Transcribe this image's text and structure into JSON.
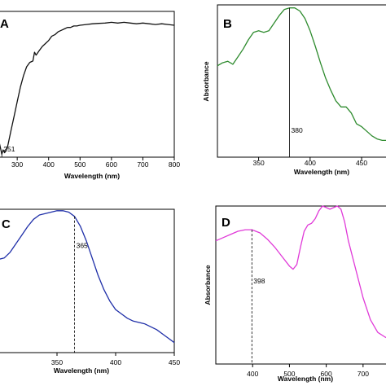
{
  "chart_data": [
    {
      "type": "line",
      "panel_label": "A",
      "xlabel": "Wavelength (nm)",
      "ylabel": "",
      "xlim": [
        240,
        800
      ],
      "ylim": [
        0,
        1
      ],
      "xticks": [
        "300",
        "400",
        "500",
        "600",
        "700",
        "800"
      ],
      "color": "#111111",
      "annotations": [
        {
          "text": "251",
          "x": 251
        }
      ],
      "series": [
        {
          "x": [
            240,
            244,
            248,
            251,
            255,
            260,
            265,
            270,
            275,
            280,
            290,
            300,
            310,
            320,
            330,
            340,
            350,
            355,
            360,
            370,
            380,
            390,
            400,
            410,
            420,
            430,
            440,
            450,
            460,
            470,
            480,
            490,
            500,
            520,
            540,
            560,
            580,
            600,
            620,
            640,
            660,
            680,
            700,
            720,
            740,
            760,
            780,
            800
          ],
          "values": [
            0.12,
            0.09,
            0.05,
            0.02,
            0.05,
            0.03,
            0.05,
            0.08,
            0.13,
            0.18,
            0.28,
            0.38,
            0.48,
            0.56,
            0.62,
            0.65,
            0.66,
            0.72,
            0.7,
            0.73,
            0.76,
            0.78,
            0.8,
            0.83,
            0.84,
            0.86,
            0.87,
            0.88,
            0.89,
            0.89,
            0.9,
            0.9,
            0.905,
            0.91,
            0.915,
            0.918,
            0.92,
            0.925,
            0.92,
            0.925,
            0.92,
            0.915,
            0.92,
            0.915,
            0.91,
            0.915,
            0.91,
            0.905
          ]
        }
      ]
    },
    {
      "type": "line",
      "panel_label": "B",
      "xlabel": "Wavelength (nm)",
      "ylabel": "Absorbance",
      "xlim": [
        310,
        480
      ],
      "ylim": [
        0,
        1
      ],
      "xticks": [
        "350",
        "400",
        "450"
      ],
      "color": "#2e8b2e",
      "annotations": [
        {
          "text": "380",
          "x": 380
        }
      ],
      "series": [
        {
          "x": [
            310,
            315,
            320,
            325,
            330,
            335,
            340,
            345,
            350,
            355,
            360,
            365,
            370,
            375,
            380,
            385,
            390,
            395,
            400,
            405,
            410,
            415,
            420,
            425,
            430,
            435,
            440,
            445,
            450,
            455,
            460,
            465,
            470,
            475,
            480
          ],
          "values": [
            0.6,
            0.62,
            0.63,
            0.61,
            0.66,
            0.71,
            0.77,
            0.82,
            0.83,
            0.82,
            0.83,
            0.88,
            0.93,
            0.97,
            0.98,
            0.98,
            0.96,
            0.91,
            0.83,
            0.73,
            0.62,
            0.52,
            0.44,
            0.37,
            0.33,
            0.33,
            0.29,
            0.22,
            0.2,
            0.17,
            0.14,
            0.12,
            0.11,
            0.11,
            0.1
          ]
        }
      ]
    },
    {
      "type": "line",
      "panel_label": "C",
      "xlabel": "Wavelength (nm)",
      "ylabel": "",
      "xlim": [
        300,
        450
      ],
      "ylim": [
        0,
        1
      ],
      "xticks": [
        "350",
        "400",
        "450"
      ],
      "color": "#1f2fa8",
      "annotations": [
        {
          "text": "365",
          "x": 365
        }
      ],
      "series": [
        {
          "x": [
            300,
            305,
            310,
            315,
            320,
            325,
            330,
            335,
            340,
            345,
            350,
            355,
            360,
            365,
            370,
            375,
            380,
            385,
            390,
            395,
            400,
            405,
            410,
            415,
            420,
            425,
            430,
            435,
            440,
            445,
            450
          ],
          "values": [
            0.65,
            0.66,
            0.7,
            0.76,
            0.82,
            0.88,
            0.93,
            0.96,
            0.97,
            0.98,
            0.99,
            0.99,
            0.98,
            0.95,
            0.88,
            0.78,
            0.66,
            0.54,
            0.44,
            0.36,
            0.3,
            0.27,
            0.24,
            0.22,
            0.21,
            0.2,
            0.18,
            0.16,
            0.13,
            0.1,
            0.07
          ]
        }
      ]
    },
    {
      "type": "line",
      "panel_label": "D",
      "xlabel": "Wavelength (nm)",
      "ylabel": "Absorbance",
      "xlim": [
        300,
        780
      ],
      "ylim": [
        0,
        1
      ],
      "xticks": [
        "400",
        "500",
        "600",
        "700"
      ],
      "color": "#e03ad8",
      "annotations": [
        {
          "text": "398",
          "x": 398
        }
      ],
      "series": [
        {
          "x": [
            300,
            320,
            340,
            360,
            380,
            398,
            420,
            440,
            460,
            480,
            500,
            510,
            520,
            530,
            540,
            550,
            560,
            570,
            580,
            590,
            600,
            610,
            620,
            630,
            640,
            650,
            660,
            680,
            700,
            720,
            740,
            760,
            780
          ],
          "values": [
            0.78,
            0.8,
            0.82,
            0.84,
            0.85,
            0.85,
            0.83,
            0.79,
            0.74,
            0.68,
            0.62,
            0.6,
            0.63,
            0.74,
            0.84,
            0.88,
            0.89,
            0.92,
            0.97,
            1.0,
            0.99,
            0.98,
            0.99,
            1.0,
            0.98,
            0.9,
            0.78,
            0.6,
            0.42,
            0.28,
            0.2,
            0.17,
            0.15
          ]
        }
      ]
    }
  ]
}
